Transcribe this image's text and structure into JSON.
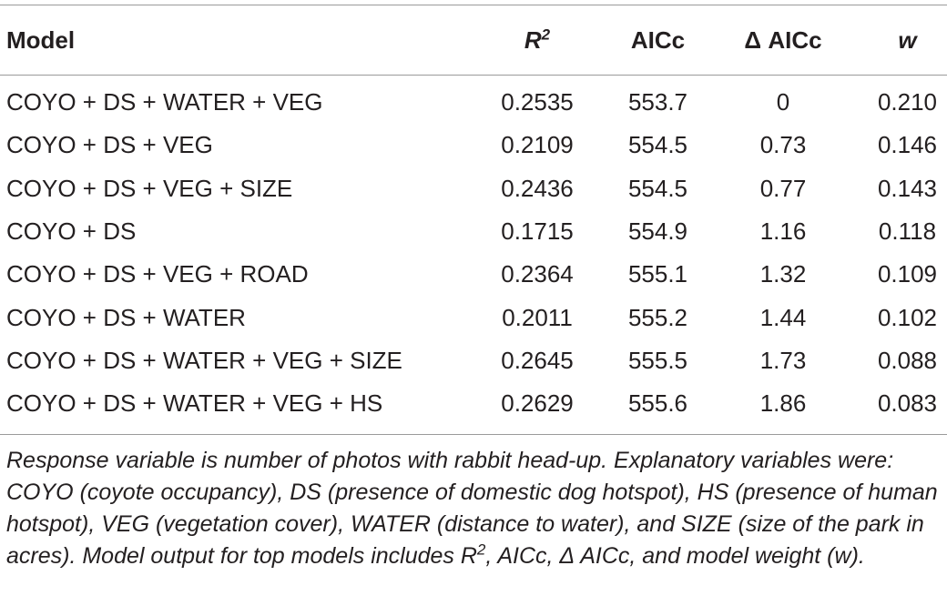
{
  "table": {
    "header": [
      "Model",
      {
        "base": "R",
        "sup": "2"
      },
      "AICc",
      "Δ AICc",
      "w"
    ],
    "rows": [
      [
        "COYO + DS + WATER + VEG",
        "0.2535",
        "553.7",
        "0",
        "0.210"
      ],
      [
        "COYO + DS + VEG",
        "0.2109",
        "554.5",
        "0.73",
        "0.146"
      ],
      [
        "COYO + DS + VEG + SIZE",
        "0.2436",
        "554.5",
        "0.77",
        "0.143"
      ],
      [
        "COYO + DS",
        "0.1715",
        "554.9",
        "1.16",
        "0.118"
      ],
      [
        "COYO + DS + VEG + ROAD",
        "0.2364",
        "555.1",
        "1.32",
        "0.109"
      ],
      [
        "COYO + DS + WATER",
        "0.2011",
        "555.2",
        "1.44",
        "0.102"
      ],
      [
        "COYO + DS + WATER + VEG + SIZE",
        "0.2645",
        "555.5",
        "1.73",
        "0.088"
      ],
      [
        "COYO + DS + WATER + VEG + HS",
        "0.2629",
        "555.6",
        "1.86",
        "0.083"
      ]
    ],
    "footnote": {
      "before": "Response variable is number of photos with rabbit head-up. Explanatory variables were: COYO (coyote occupancy), DS (presence of domestic dog hotspot), HS (presence of human hotspot), VEG (vegetation cover), WATER (distance to water), and SIZE (size of the park in acres). Model output for top models includes R",
      "sup": "2",
      "after": ", AICc, Δ AICc, and model weight (w)."
    }
  }
}
